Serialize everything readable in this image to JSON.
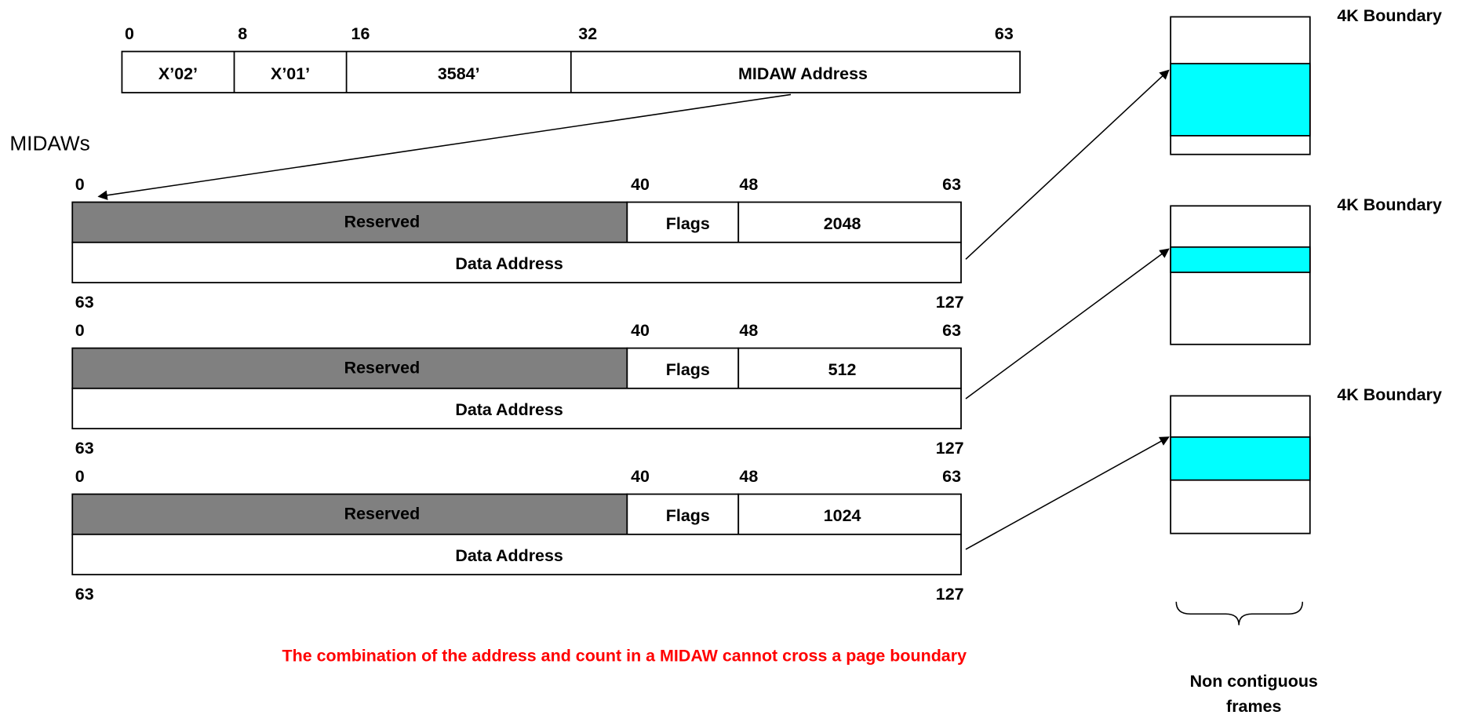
{
  "ccw": {
    "bit_labels": [
      "0",
      "8",
      "16",
      "32",
      "63"
    ],
    "fields": [
      "X’02’",
      "X’01’",
      "3584’",
      "MIDAW Address"
    ]
  },
  "midaws_label": "MIDAWs",
  "midaws": [
    {
      "top_bits": [
        "0",
        "40",
        "48",
        "63"
      ],
      "reserved": "Reserved",
      "flags": "Flags",
      "count": "2048",
      "data_address": "Data Address",
      "bottom_bits": [
        "63",
        "127"
      ]
    },
    {
      "top_bits": [
        "0",
        "40",
        "48",
        "63"
      ],
      "reserved": "Reserved",
      "flags": "Flags",
      "count": "512",
      "data_address": "Data Address",
      "bottom_bits": [
        "63",
        "127"
      ]
    },
    {
      "top_bits": [
        "0",
        "40",
        "48",
        "63"
      ],
      "reserved": "Reserved",
      "flags": "Flags",
      "count": "1024",
      "data_address": "Data Address",
      "bottom_bits": [
        "63",
        "127"
      ]
    }
  ],
  "frames": [
    {
      "boundary_label": "4K Boundary"
    },
    {
      "boundary_label": "4K Boundary"
    },
    {
      "boundary_label": "4K Boundary"
    }
  ],
  "note": "The combination of the address and count in a MIDAW cannot cross a page boundary",
  "frames_caption": [
    "Non contiguous",
    "frames"
  ]
}
